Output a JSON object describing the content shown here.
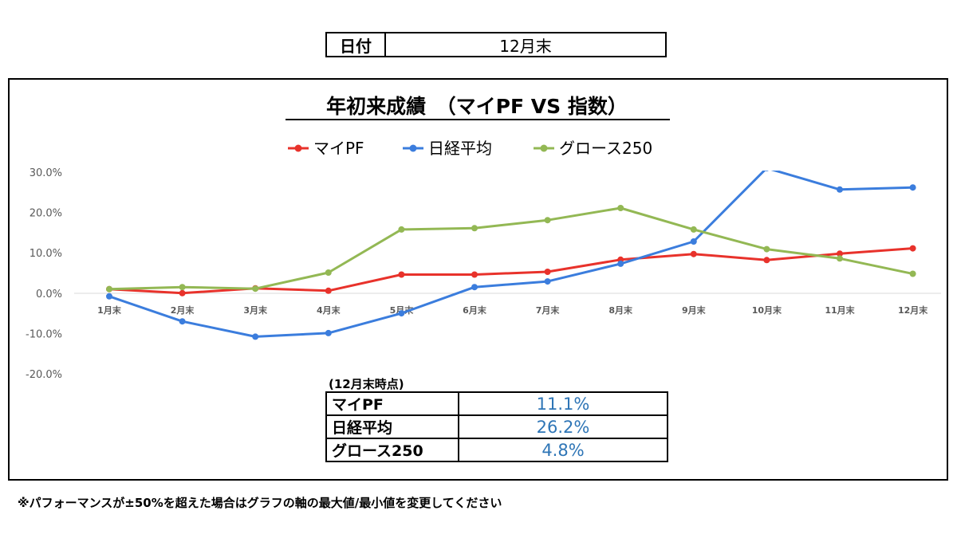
{
  "header": {
    "date_label": "日付",
    "date_value": "12月末"
  },
  "chart_data": {
    "type": "line",
    "title": "年初来成績　（マイPF VS 指数）",
    "categories": [
      "1月末",
      "2月末",
      "3月末",
      "4月末",
      "5月末",
      "6月末",
      "7月末",
      "8月末",
      "9月末",
      "10月末",
      "11月末",
      "12月末"
    ],
    "series": [
      {
        "name": "マイPF",
        "color": "#e8322b",
        "values": [
          1.0,
          0.0,
          1.2,
          0.6,
          4.6,
          4.6,
          5.3,
          8.3,
          9.7,
          8.2,
          9.8,
          11.1
        ]
      },
      {
        "name": "日経平均",
        "color": "#3b7ddd",
        "values": [
          -0.8,
          -7.0,
          -10.8,
          -9.9,
          -5.0,
          1.5,
          2.9,
          7.3,
          12.8,
          31.0,
          25.7,
          26.2
        ]
      },
      {
        "name": "グロース250",
        "color": "#93b854",
        "values": [
          1.0,
          1.5,
          1.1,
          5.1,
          15.8,
          16.1,
          18.1,
          21.1,
          15.8,
          10.9,
          8.6,
          4.8
        ]
      }
    ],
    "ylim": [
      -20,
      30
    ],
    "yticks": [
      "30.0%",
      "20.0%",
      "10.0%",
      "0.0%",
      "-10.0%",
      "-20.0%"
    ],
    "ytick_values": [
      30,
      20,
      10,
      0,
      -10,
      -20
    ],
    "legend": "top",
    "grid": false
  },
  "summary": {
    "caption": "(12月末時点)",
    "rows": [
      {
        "name": "マイPF",
        "value": "11.1%"
      },
      {
        "name": "日経平均",
        "value": "26.2%"
      },
      {
        "name": "グロース250",
        "value": "4.8%"
      }
    ]
  },
  "note": "※パフォーマンスが±50%を超えた場合はグラフの軸の最大値/最小値を変更してください"
}
